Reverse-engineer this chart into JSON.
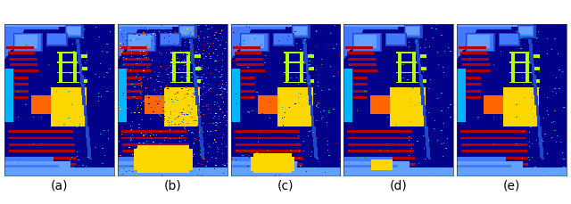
{
  "labels": [
    "(a)",
    "(b)",
    "(c)",
    "(d)",
    "(e)"
  ],
  "fig_width": 6.4,
  "fig_height": 2.3,
  "label_fontsize": 10,
  "n_panels": 5,
  "background_color": "#ffffff",
  "colors": {
    "navy": "#00008B",
    "dark_navy": "#000066",
    "red": "#CC0000",
    "yellow": "#FFD700",
    "orange": "#FF6600",
    "cyan": "#00CCFF",
    "light_blue": "#4499FF",
    "med_blue": "#2255CC",
    "lime": "#CCFF00",
    "green": "#00BB00",
    "sky_blue": "#6699FF",
    "dark_blue": "#001188"
  }
}
